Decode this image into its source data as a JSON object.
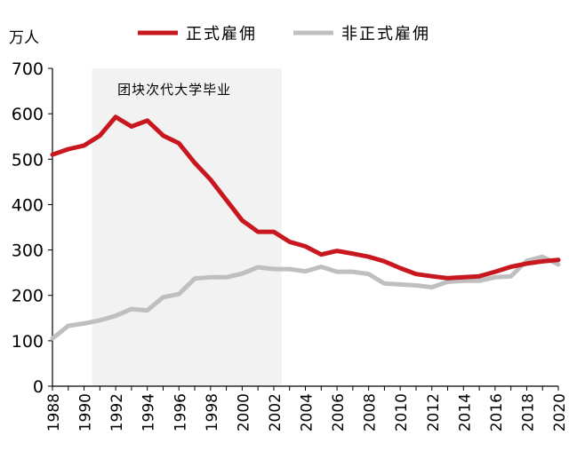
{
  "chart_data": {
    "type": "line",
    "unit_label": "万人",
    "x": [
      1988,
      1989,
      1990,
      1991,
      1992,
      1993,
      1994,
      1995,
      1996,
      1997,
      1998,
      1999,
      2000,
      2001,
      2002,
      2003,
      2004,
      2005,
      2006,
      2007,
      2008,
      2009,
      2010,
      2011,
      2012,
      2013,
      2014,
      2015,
      2016,
      2017,
      2018,
      2019,
      2020
    ],
    "xticks": [
      "1988",
      "1990",
      "1992",
      "1994",
      "1996",
      "1998",
      "2000",
      "2002",
      "2004",
      "2006",
      "2008",
      "2010",
      "2012",
      "2014",
      "2016",
      "2018",
      "2020"
    ],
    "ylim": [
      0,
      700
    ],
    "yticks": [
      "0",
      "100",
      "200",
      "300",
      "400",
      "500",
      "600",
      "700"
    ],
    "series": [
      {
        "name": "正式雇佣",
        "color": "#c8171e",
        "values": [
          510,
          522,
          530,
          552,
          593,
          572,
          585,
          552,
          535,
          492,
          455,
          410,
          365,
          340,
          340,
          318,
          308,
          290,
          298,
          292,
          285,
          275,
          260,
          247,
          242,
          238,
          240,
          242,
          252,
          263,
          270,
          275,
          278
        ]
      },
      {
        "name": "非正式雇佣",
        "color": "#bfbfbf",
        "values": [
          105,
          133,
          138,
          145,
          155,
          170,
          167,
          196,
          203,
          237,
          240,
          240,
          248,
          262,
          258,
          258,
          253,
          263,
          252,
          252,
          247,
          226,
          224,
          222,
          218,
          230,
          232,
          232,
          240,
          242,
          276,
          285,
          268
        ]
      }
    ],
    "shaded_region": {
      "label": "团块次代大学毕业",
      "x_start": 1990.5,
      "x_end": 2002.5,
      "color": "#f2f2f2",
      "label_color": "#c8171e"
    },
    "grid": false,
    "legend": "top"
  }
}
